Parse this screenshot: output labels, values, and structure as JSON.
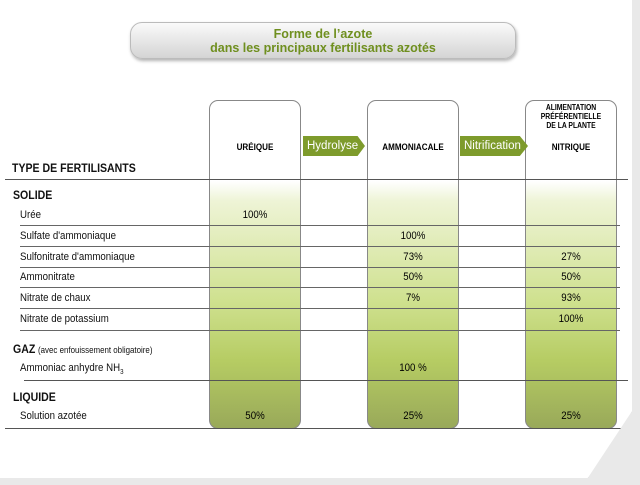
{
  "title": {
    "line1": "Forme de l’azote",
    "line2": "dans les principaux fertilisants azotés"
  },
  "columns": {
    "ureique": "URÉIQUE",
    "ammoniacale": "AMMONIACALE",
    "nitrique_note": "ALIMENTATION PRÉFÉRENTIELLE DE LA PLANTE",
    "nitrique": "NITRIQUE"
  },
  "arrows": {
    "hydrolyse": "Hydrolyse",
    "nitrification": "Nitrification"
  },
  "header": "TYPE DE FERTILISANTS",
  "sections": {
    "solide": "SOLIDE",
    "gaz": "GAZ",
    "gaz_note": "(avec enfouissement obligatoire)",
    "liquide": "LIQUIDE"
  },
  "rows": [
    {
      "name": "Urée",
      "ureique": "100%",
      "ammoniacale": "",
      "nitrique": ""
    },
    {
      "name": "Sulfate d'ammoniaque",
      "ureique": "",
      "ammoniacale": "100%",
      "nitrique": ""
    },
    {
      "name": "Sulfonitrate d'ammoniaque",
      "ureique": "",
      "ammoniacale": "73%",
      "nitrique": "27%"
    },
    {
      "name": "Ammonitrate",
      "ureique": "",
      "ammoniacale": "50%",
      "nitrique": "50%"
    },
    {
      "name": "Nitrate de chaux",
      "ureique": "",
      "ammoniacale": "7%",
      "nitrique": "93%"
    },
    {
      "name": "Nitrate de potassium",
      "ureique": "",
      "ammoniacale": "",
      "nitrique": "100%"
    },
    {
      "name": "Ammoniac anhydre NH",
      "sub": "3",
      "ureique": "",
      "ammoniacale": "100 %",
      "nitrique": ""
    },
    {
      "name": "Solution azotée",
      "ureique": "50%",
      "ammoniacale": "25%",
      "nitrique": "25%"
    }
  ]
}
